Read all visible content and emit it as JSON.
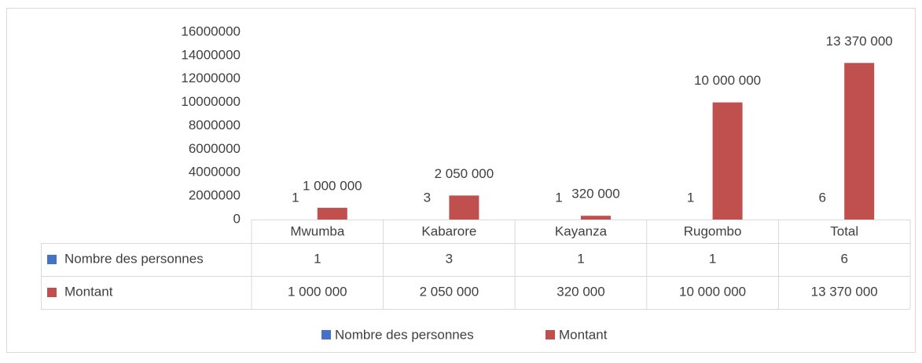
{
  "chart_data": {
    "type": "bar",
    "categories": [
      "Mwumba",
      "Kabarore",
      "Kayanza",
      "Rugombo",
      "Total"
    ],
    "series": [
      {
        "name": "Nombre des personnes",
        "color": "#4472c4",
        "values": [
          1,
          3,
          1,
          1,
          6
        ]
      },
      {
        "name": "Montant",
        "color": "#c0504d",
        "values": [
          1000000,
          2050000,
          320000,
          10000000,
          13370000
        ],
        "value_labels": [
          "1 000 000",
          "2 050 000",
          "320 000",
          "10 000 000",
          "13 370 000"
        ]
      }
    ],
    "ylim": [
      0,
      16000000
    ],
    "yticks": [
      0,
      2000000,
      4000000,
      6000000,
      8000000,
      10000000,
      12000000,
      14000000,
      16000000
    ],
    "legend": "bottom",
    "data_table": true
  }
}
